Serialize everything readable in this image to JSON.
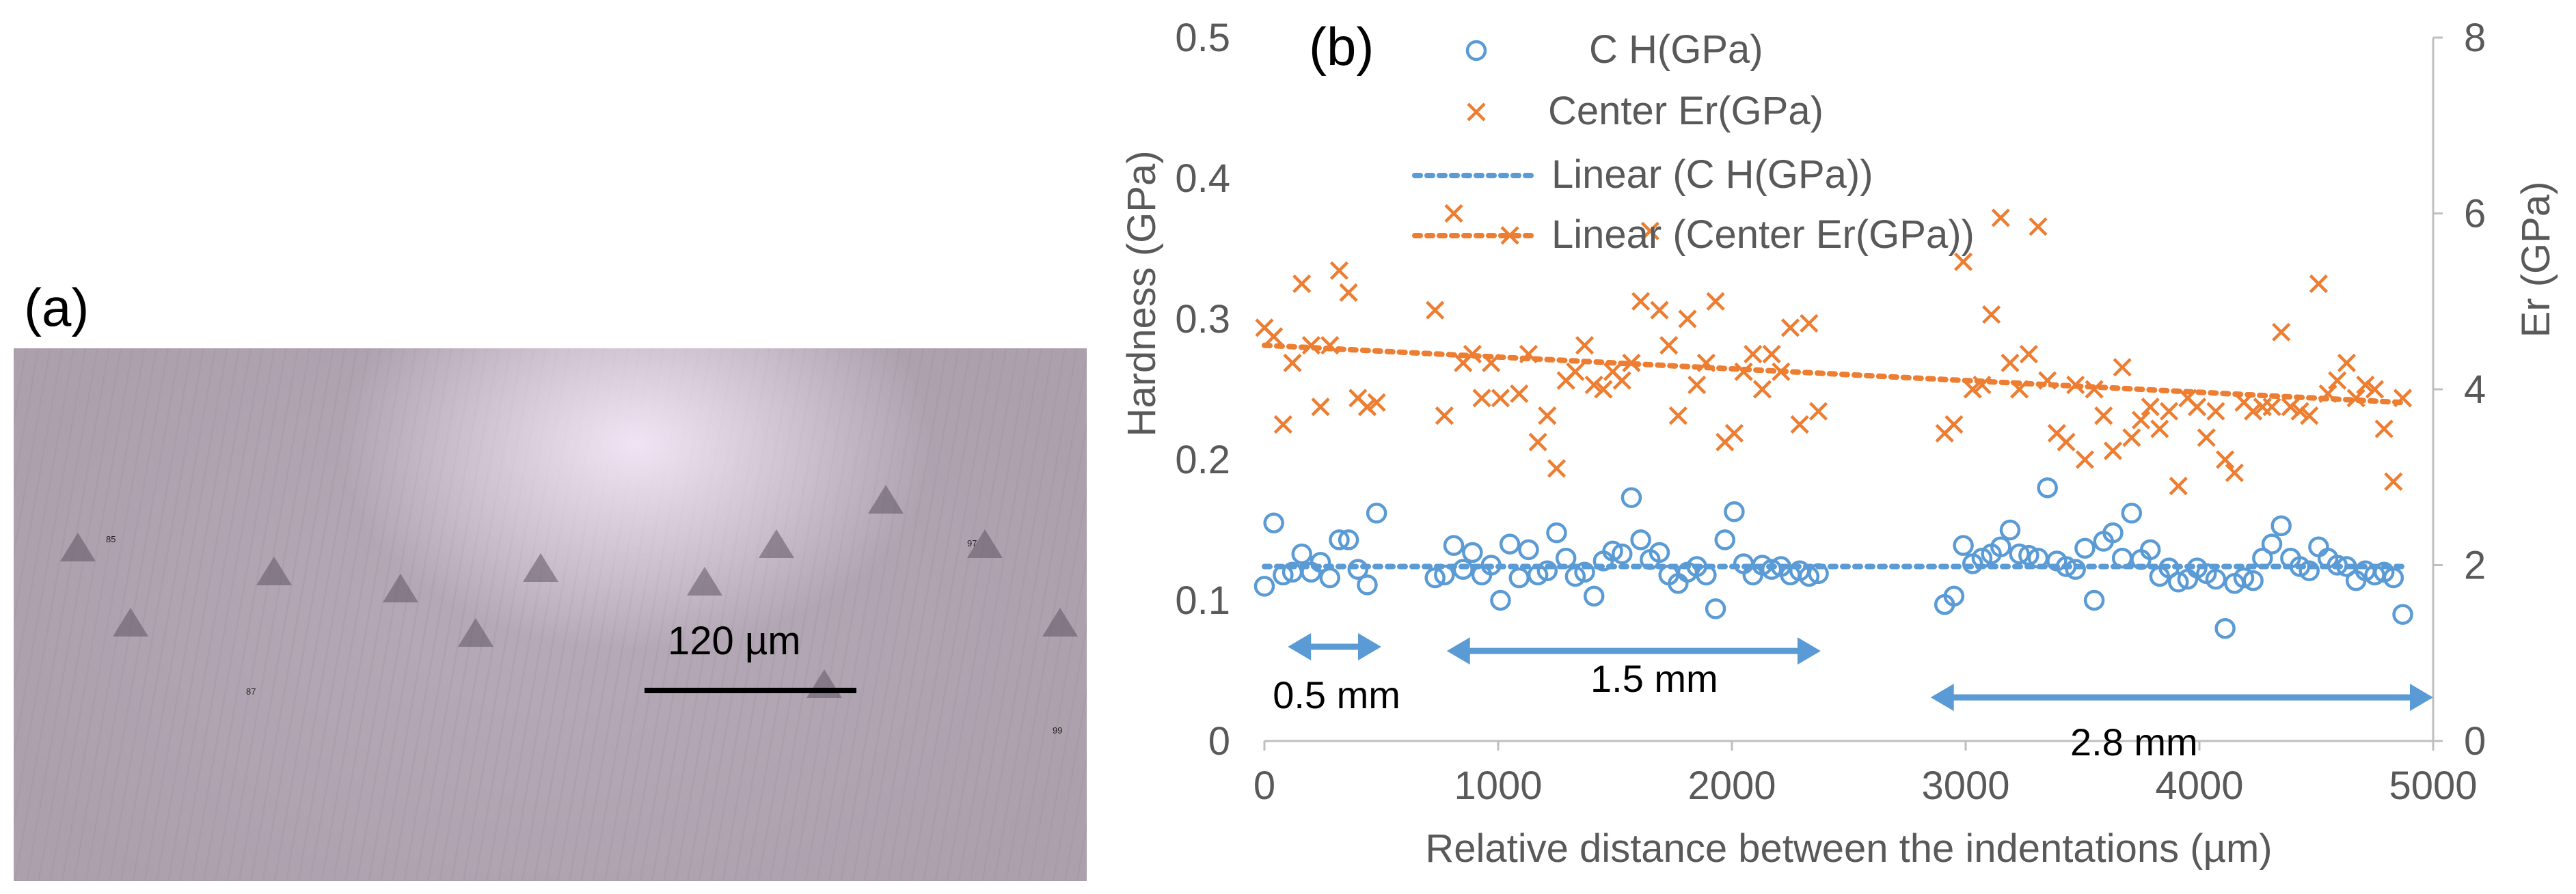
{
  "panel_a": {
    "label": "(a)",
    "scale_bar_label": "120 µm",
    "indent_numbers": [
      "85",
      "87",
      "97",
      "99"
    ]
  },
  "chart_data": {
    "panel_label": "(b)",
    "type": "scatter",
    "title": "",
    "xlabel": "Relative distance between the indentations (µm)",
    "ylabel": "Hardness (GPa)",
    "y2label": "Er (GPa)",
    "xlim": [
      0,
      5000
    ],
    "ylim": [
      0,
      0.5
    ],
    "y2lim": [
      0,
      8
    ],
    "xticks": [
      "0",
      "1000",
      "2000",
      "3000",
      "4000",
      "5000"
    ],
    "yticks": [
      "0",
      "0.1",
      "0.2",
      "0.3",
      "0.4",
      "0.5"
    ],
    "y2ticks": [
      "0",
      "2",
      "4",
      "6",
      "8"
    ],
    "grid": false,
    "legend_position": "top",
    "colors": {
      "hardness": "#5B9BD5",
      "er": "#ED7D31",
      "annotation": "#5B9BD5"
    },
    "series": [
      {
        "name": "C H(GPa)",
        "marker": "circle",
        "axis": "left",
        "x": [
          0,
          40,
          80,
          120,
          160,
          200,
          240,
          280,
          320,
          360,
          400,
          440,
          480,
          730,
          770,
          810,
          850,
          890,
          930,
          970,
          1010,
          1050,
          1090,
          1130,
          1170,
          1210,
          1250,
          1290,
          1330,
          1370,
          1410,
          1450,
          1490,
          1530,
          1570,
          1610,
          1650,
          1690,
          1730,
          1770,
          1810,
          1850,
          1890,
          1930,
          1970,
          2010,
          2050,
          2090,
          2130,
          2170,
          2210,
          2250,
          2290,
          2330,
          2370,
          2910,
          2950,
          2990,
          3030,
          3070,
          3110,
          3150,
          3190,
          3230,
          3270,
          3310,
          3350,
          3390,
          3430,
          3470,
          3510,
          3550,
          3590,
          3630,
          3670,
          3710,
          3750,
          3790,
          3830,
          3870,
          3910,
          3950,
          3990,
          4030,
          4070,
          4110,
          4150,
          4190,
          4230,
          4270,
          4310,
          4350,
          4390,
          4430,
          4470,
          4510,
          4550,
          4590,
          4630,
          4670,
          4710,
          4750,
          4790,
          4830,
          4870
        ],
        "y": [
          0.11,
          0.155,
          0.118,
          0.12,
          0.133,
          0.12,
          0.127,
          0.116,
          0.143,
          0.143,
          0.122,
          0.111,
          0.162,
          0.116,
          0.118,
          0.139,
          0.122,
          0.134,
          0.118,
          0.125,
          0.1,
          0.14,
          0.116,
          0.136,
          0.118,
          0.121,
          0.148,
          0.13,
          0.117,
          0.12,
          0.103,
          0.128,
          0.135,
          0.133,
          0.173,
          0.143,
          0.129,
          0.134,
          0.118,
          0.112,
          0.12,
          0.124,
          0.118,
          0.094,
          0.143,
          0.163,
          0.126,
          0.118,
          0.125,
          0.122,
          0.124,
          0.118,
          0.121,
          0.117,
          0.119,
          0.097,
          0.103,
          0.139,
          0.126,
          0.13,
          0.133,
          0.138,
          0.15,
          0.133,
          0.132,
          0.13,
          0.18,
          0.128,
          0.124,
          0.122,
          0.137,
          0.1,
          0.142,
          0.148,
          0.13,
          0.162,
          0.129,
          0.136,
          0.117,
          0.123,
          0.113,
          0.115,
          0.123,
          0.119,
          0.115,
          0.08,
          0.112,
          0.116,
          0.114,
          0.13,
          0.14,
          0.153,
          0.13,
          0.124,
          0.121,
          0.138,
          0.13,
          0.125,
          0.124,
          0.114,
          0.121,
          0.118,
          0.12,
          0.116,
          0.09
        ]
      },
      {
        "name": "Center Er(GPa)",
        "marker": "x",
        "axis": "right",
        "x": [
          0,
          40,
          80,
          120,
          160,
          200,
          240,
          280,
          320,
          360,
          400,
          440,
          480,
          730,
          770,
          810,
          850,
          890,
          930,
          970,
          1010,
          1050,
          1090,
          1130,
          1170,
          1210,
          1250,
          1290,
          1330,
          1370,
          1410,
          1450,
          1490,
          1530,
          1570,
          1610,
          1650,
          1690,
          1730,
          1770,
          1810,
          1850,
          1890,
          1930,
          1970,
          2010,
          2050,
          2090,
          2130,
          2170,
          2210,
          2250,
          2290,
          2330,
          2370,
          2910,
          2950,
          2990,
          3030,
          3070,
          3110,
          3150,
          3190,
          3230,
          3270,
          3310,
          3350,
          3390,
          3430,
          3470,
          3510,
          3550,
          3590,
          3630,
          3670,
          3710,
          3750,
          3790,
          3830,
          3870,
          3910,
          3950,
          3990,
          4030,
          4070,
          4110,
          4150,
          4190,
          4230,
          4270,
          4310,
          4350,
          4390,
          4430,
          4470,
          4510,
          4550,
          4590,
          4630,
          4670,
          4710,
          4750,
          4790,
          4830,
          4870
        ],
        "y": [
          4.7,
          4.6,
          3.6,
          4.3,
          5.2,
          4.5,
          3.8,
          4.5,
          5.35,
          5.1,
          3.9,
          3.8,
          3.85,
          4.9,
          3.7,
          6.0,
          4.3,
          4.4,
          3.9,
          4.3,
          3.9,
          5.75,
          3.95,
          4.4,
          3.4,
          3.7,
          3.1,
          4.1,
          4.2,
          4.5,
          4.05,
          4.0,
          4.2,
          4.1,
          4.3,
          5.0,
          5.8,
          4.9,
          4.5,
          3.7,
          4.8,
          4.05,
          4.3,
          5.0,
          3.4,
          3.5,
          4.2,
          4.4,
          4.0,
          4.4,
          4.2,
          4.7,
          3.6,
          4.75,
          3.75,
          3.5,
          3.6,
          5.45,
          4.0,
          4.05,
          4.85,
          5.95,
          4.3,
          4.0,
          4.4,
          5.85,
          4.1,
          3.5,
          3.4,
          4.05,
          3.2,
          4.0,
          3.7,
          3.3,
          4.25,
          3.45,
          3.65,
          3.8,
          3.55,
          3.75,
          2.9,
          3.9,
          3.8,
          3.45,
          3.75,
          3.2,
          3.05,
          3.85,
          3.75,
          3.8,
          3.8,
          4.65,
          3.8,
          3.75,
          3.7,
          5.2,
          3.95,
          4.1,
          4.3,
          3.9,
          4.05,
          4.0,
          3.55,
          2.95,
          3.9
        ]
      },
      {
        "name": "Linear (C H(GPa))",
        "marker": "dotted-line",
        "axis": "left",
        "x": [
          0,
          4870
        ],
        "y": [
          0.124,
          0.124
        ]
      },
      {
        "name": "Linear (Center Er(GPa))",
        "marker": "dotted-line",
        "axis": "right",
        "x": [
          0,
          4870
        ],
        "y": [
          4.5,
          3.85
        ]
      }
    ],
    "annotations": [
      {
        "label": "0.5 mm",
        "x_start": 100,
        "x_end": 500,
        "y": 0.067
      },
      {
        "label": "1.5 mm",
        "x_start": 780,
        "x_end": 2380,
        "y": 0.064
      },
      {
        "label": "2.8 mm",
        "x_start": 2850,
        "x_end": 5000,
        "y": 0.031
      }
    ]
  }
}
